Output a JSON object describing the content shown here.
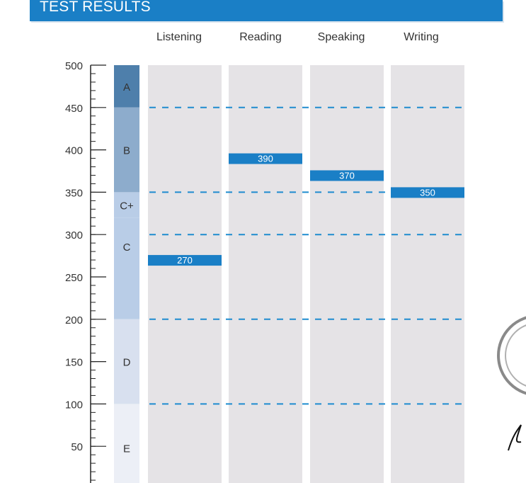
{
  "header": {
    "title": "TEST RESULTS"
  },
  "colors": {
    "header_bg": "#1a7fc6",
    "column_bg": "#e5e3e6",
    "score_bar": "#1a7fc6",
    "dashed_line": "#1f8ccf",
    "level_A": "#4e7fab",
    "level_B": "#8daccc",
    "level_C": "#b9cde7",
    "level_D": "#d8e0ef",
    "level_E": "#eceff6"
  },
  "chart_data": {
    "type": "bar",
    "categories": [
      "Listening",
      "Reading",
      "Speaking",
      "Writing"
    ],
    "values": [
      270,
      390,
      370,
      350
    ],
    "value_labels": [
      "270",
      "390",
      "370",
      "350"
    ],
    "ylim": [
      0,
      500
    ],
    "yticks": [
      50,
      100,
      150,
      200,
      250,
      300,
      350,
      400,
      450,
      500
    ],
    "ytick_labels": [
      "50",
      "100",
      "150",
      "200",
      "250",
      "300",
      "350",
      "400",
      "450",
      "500"
    ],
    "minor_tick_step": 10,
    "levels": [
      {
        "label": "A",
        "from": 450,
        "to": 500
      },
      {
        "label": "B",
        "from": 350,
        "to": 450
      },
      {
        "label": "C+",
        "from": 320,
        "to": 350
      },
      {
        "label": "C",
        "from": 200,
        "to": 320
      },
      {
        "label": "D",
        "from": 100,
        "to": 200
      },
      {
        "label": "E",
        "from": 0,
        "to": 100
      }
    ],
    "threshold_lines": [
      450,
      350,
      300,
      200,
      100
    ],
    "grid": false,
    "legend": "none"
  }
}
